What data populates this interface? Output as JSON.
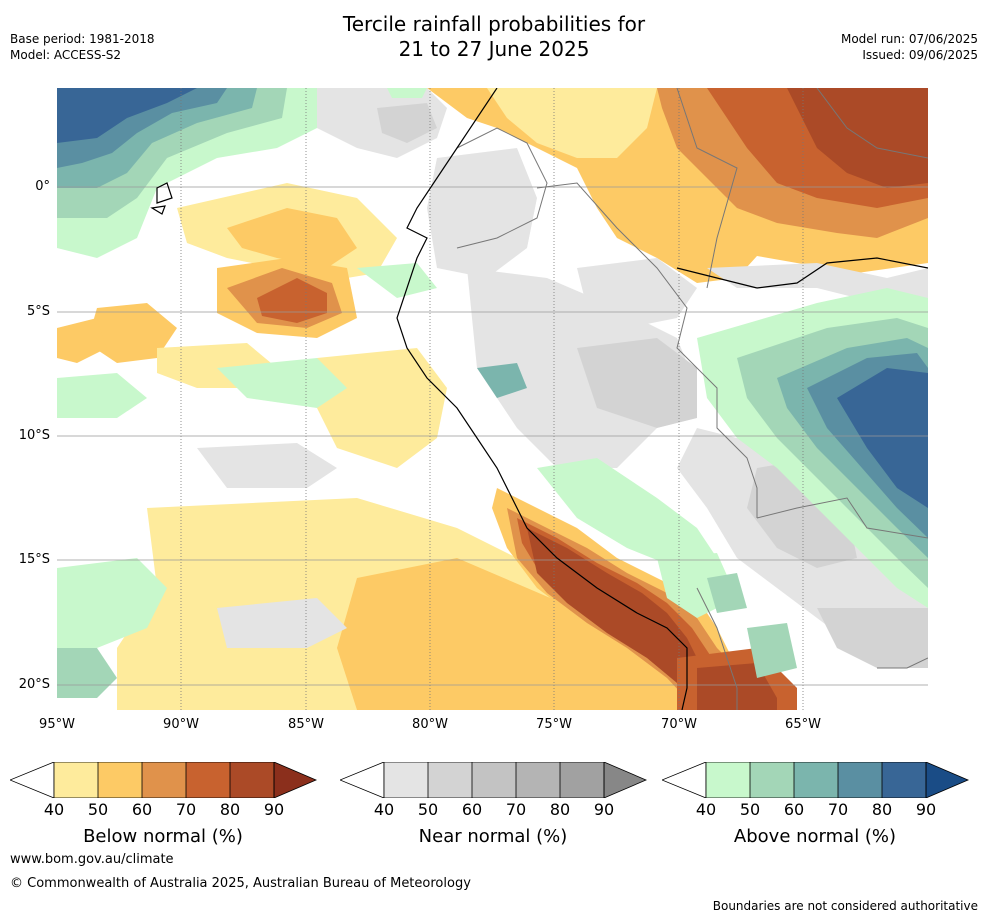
{
  "header": {
    "title_line1": "Tercile rainfall probabilities for",
    "title_line2": "21 to 27 June 2025",
    "base_period": "Base period: 1981-2018",
    "model": "Model: ACCESS-S2",
    "model_run": "Model run: 07/06/2025",
    "issued": "Issued: 09/06/2025"
  },
  "map": {
    "region": "Western South America",
    "lon_labels": [
      "95°W",
      "90°W",
      "85°W",
      "80°W",
      "75°W",
      "70°W",
      "65°W"
    ],
    "lat_labels": [
      "0°",
      "5°S",
      "10°S",
      "15°S",
      "20°S"
    ]
  },
  "legends": [
    {
      "name": "below",
      "title": "Below normal (%)",
      "ticks": [
        "40",
        "50",
        "60",
        "70",
        "80",
        "90"
      ],
      "colors": [
        "#ffffff",
        "#feeb9c",
        "#fdca65",
        "#e0924b",
        "#c8622f",
        "#ab4a27",
        "#8b2f1c"
      ]
    },
    {
      "name": "near",
      "title": "Near normal (%)",
      "ticks": [
        "40",
        "50",
        "60",
        "70",
        "80",
        "90"
      ],
      "colors": [
        "#ffffff",
        "#e4e4e4",
        "#d3d3d3",
        "#c3c3c3",
        "#b4b4b4",
        "#a1a1a1",
        "#878787"
      ]
    },
    {
      "name": "above",
      "title": "Above normal (%)",
      "ticks": [
        "40",
        "50",
        "60",
        "70",
        "80",
        "90"
      ],
      "colors": [
        "#ffffff",
        "#c8f8cc",
        "#a3d6b7",
        "#7bb5ad",
        "#5a8fa2",
        "#386696",
        "#1a4c86"
      ]
    }
  ],
  "footer": {
    "url": "www.bom.gov.au/climate",
    "copyright": "© Commonwealth of Australia 2025, Australian Bureau of Meteorology",
    "disclaimer": "Boundaries are not considered authoritative"
  }
}
